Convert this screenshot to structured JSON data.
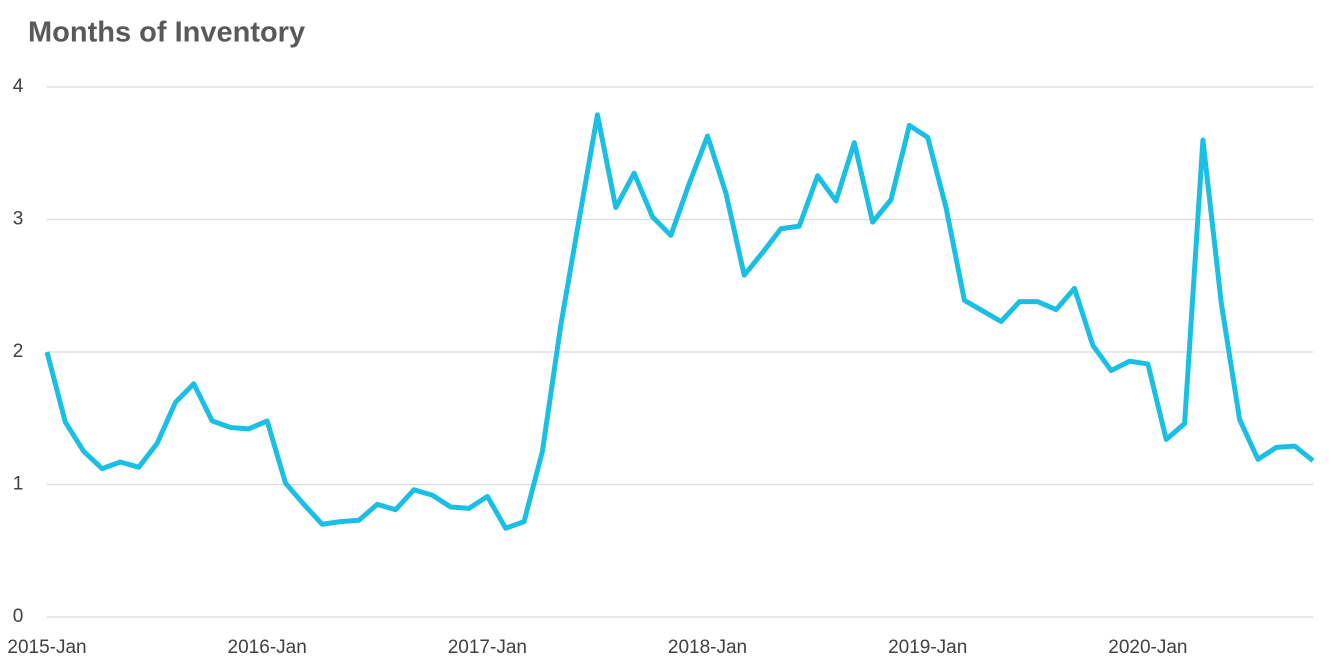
{
  "chart_data": {
    "type": "line",
    "title": "Months of Inventory",
    "categories": [
      "2015-Jan",
      null,
      null,
      null,
      null,
      null,
      null,
      null,
      null,
      null,
      null,
      null,
      "2016-Jan",
      null,
      null,
      null,
      null,
      null,
      null,
      null,
      null,
      null,
      null,
      null,
      "2017-Jan",
      null,
      null,
      null,
      null,
      null,
      null,
      null,
      null,
      null,
      null,
      null,
      "2018-Jan",
      null,
      null,
      null,
      null,
      null,
      null,
      null,
      null,
      null,
      null,
      null,
      "2019-Jan",
      null,
      null,
      null,
      null,
      null,
      null,
      null,
      null,
      null,
      null,
      null,
      "2020-Jan",
      null,
      null,
      null,
      null,
      null,
      null,
      null,
      null,
      null
    ],
    "values": [
      2.0,
      1.47,
      1.25,
      1.12,
      1.17,
      1.13,
      1.31,
      1.62,
      1.76,
      1.48,
      1.43,
      1.42,
      1.48,
      1.01,
      0.85,
      0.7,
      0.72,
      0.73,
      0.85,
      0.81,
      0.96,
      0.92,
      0.83,
      0.82,
      0.91,
      0.67,
      0.72,
      1.25,
      2.2,
      3.0,
      3.79,
      3.09,
      3.35,
      3.02,
      2.88,
      3.27,
      3.63,
      3.2,
      2.58,
      2.75,
      2.93,
      2.95,
      3.33,
      3.14,
      3.58,
      2.98,
      3.15,
      3.71,
      3.62,
      3.09,
      2.39,
      2.31,
      2.23,
      2.38,
      2.38,
      2.32,
      2.48,
      2.05,
      1.86,
      1.93,
      1.91,
      1.34,
      1.46,
      3.6,
      2.37,
      1.49,
      1.19,
      1.28,
      1.29,
      1.18
    ],
    "color": "#1cbfe4",
    "ylim": [
      0,
      4
    ],
    "yticks": [
      0,
      1,
      2,
      3,
      4
    ],
    "grid": true
  }
}
